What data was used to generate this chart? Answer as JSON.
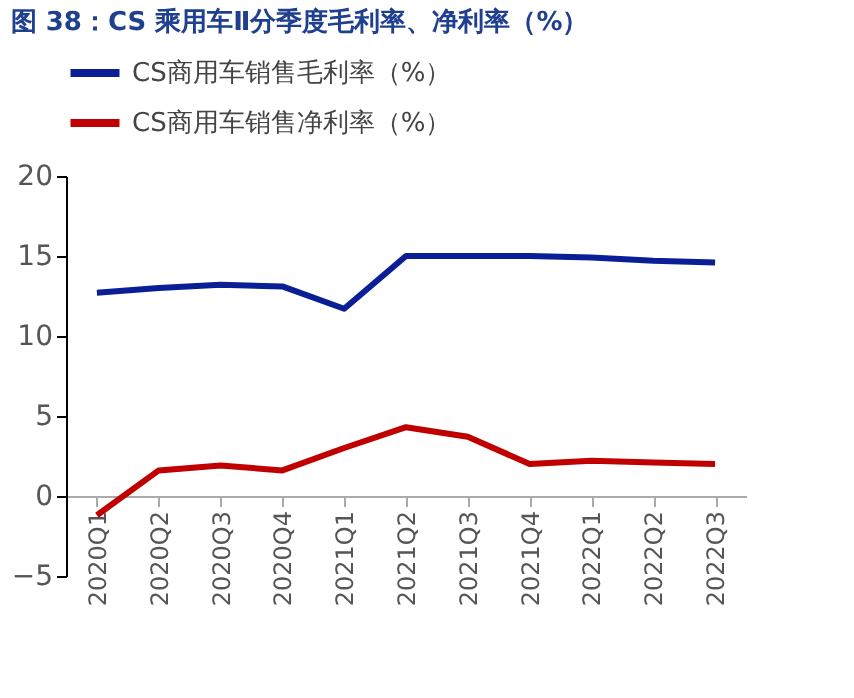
{
  "chart_data": {
    "type": "line",
    "title": "图 38：CS 乘用车Ⅱ分季度毛利率、净利率（%）",
    "categories": [
      "2020Q1",
      "2020Q2",
      "2020Q3",
      "2020Q4",
      "2021Q1",
      "2021Q2",
      "2021Q3",
      "2021Q4",
      "2022Q1",
      "2022Q2",
      "2022Q3"
    ],
    "series": [
      {
        "name": "CS商用车销售毛利率（%）",
        "color": "#0a1f96",
        "values": [
          12.7,
          13.0,
          13.2,
          13.1,
          11.7,
          15.0,
          15.0,
          15.0,
          14.9,
          14.7,
          14.6
        ]
      },
      {
        "name": "CS商用车销售净利率（%）",
        "color": "#c00000",
        "values": [
          -1.2,
          1.6,
          1.9,
          1.6,
          3.0,
          4.3,
          3.7,
          2.0,
          2.2,
          2.1,
          2.0
        ]
      }
    ],
    "ylim": [
      -5,
      20
    ],
    "yticks": [
      -5,
      0,
      5,
      10,
      15,
      20
    ],
    "grid": false,
    "legend": "top",
    "marker": "none",
    "line_style": "solid"
  }
}
